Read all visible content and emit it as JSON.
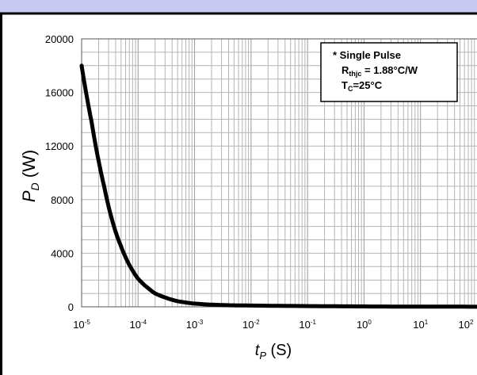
{
  "chart_data": {
    "type": "line",
    "title": "",
    "xlabel": {
      "main": "t",
      "sub": "P",
      "unit": " (S)"
    },
    "ylabel": {
      "main": "P",
      "sub": "D",
      "unit": " (W)"
    },
    "x_scale": "log",
    "xlim": [
      1e-05,
      100
    ],
    "ylim": [
      0,
      20000
    ],
    "grid": true,
    "x_ticks": [
      {
        "value": 1e-05,
        "base": "10",
        "exp": "-5"
      },
      {
        "value": 0.0001,
        "base": "10",
        "exp": "-4"
      },
      {
        "value": 0.001,
        "base": "10",
        "exp": "-3"
      },
      {
        "value": 0.01,
        "base": "10",
        "exp": "-2"
      },
      {
        "value": 0.1,
        "base": "10",
        "exp": "-1"
      },
      {
        "value": 1,
        "base": "10",
        "exp": "0"
      },
      {
        "value": 10,
        "base": "10",
        "exp": "1"
      },
      {
        "value": 100,
        "base": "10",
        "exp": "2"
      }
    ],
    "y_ticks": [
      {
        "value": 0,
        "label": "0"
      },
      {
        "value": 4000,
        "label": "4000"
      },
      {
        "value": 8000,
        "label": "8000"
      },
      {
        "value": 12000,
        "label": "12000"
      },
      {
        "value": 16000,
        "label": "16000"
      },
      {
        "value": 20000,
        "label": "20000"
      }
    ],
    "series": [
      {
        "color": "#000000",
        "x": [
          1e-05,
          1.2e-05,
          1.5e-05,
          2e-05,
          2.5e-05,
          3e-05,
          4e-05,
          5e-05,
          6e-05,
          8e-05,
          0.0001,
          0.00015,
          0.0002,
          0.0003,
          0.0005,
          0.001,
          0.002,
          0.005,
          0.01,
          0.1,
          1,
          10,
          100
        ],
        "y": [
          18000,
          16000,
          13800,
          10900,
          9000,
          7500,
          5600,
          4500,
          3700,
          2700,
          2100,
          1400,
          1000,
          700,
          420,
          240,
          160,
          110,
          95,
          55,
          28,
          14,
          8
        ]
      }
    ],
    "legend": {
      "position": "top-right",
      "line1": "* Single Pulse",
      "line2": {
        "main": "R",
        "sub": "thjc",
        "rest": " = 1.88°C/W"
      },
      "line3": {
        "main": "T",
        "sub": "C",
        "rest": "=25°C"
      }
    }
  }
}
